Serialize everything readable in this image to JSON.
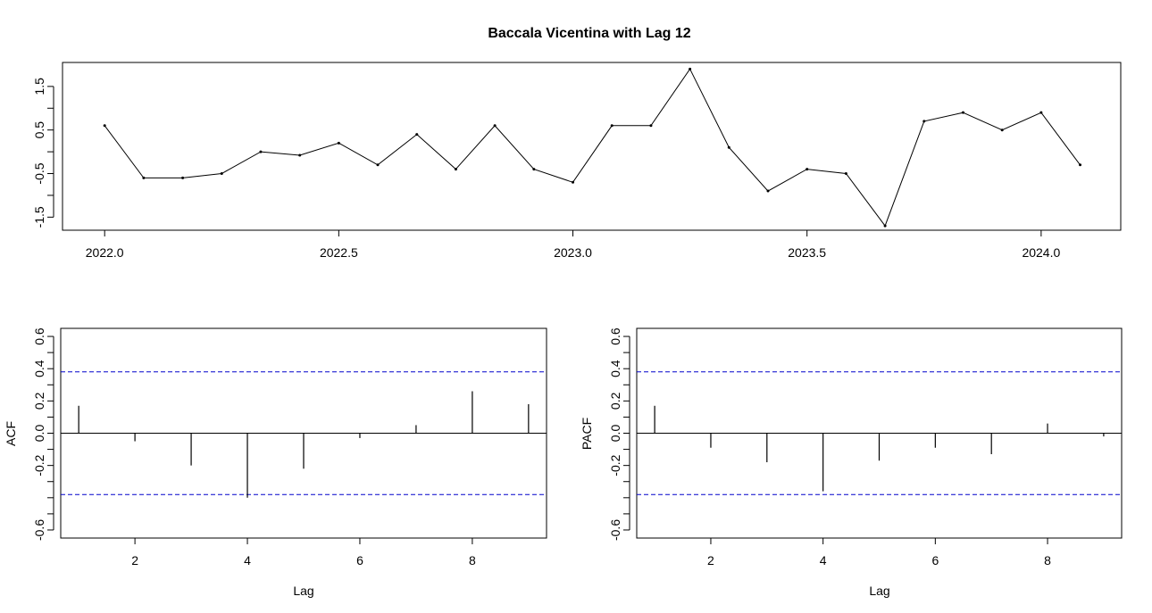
{
  "title": "Baccala Vicentina with Lag 12",
  "colors": {
    "line": "#000000",
    "bounds": "#0000cc",
    "background": "#ffffff"
  },
  "chart_data": [
    {
      "type": "line",
      "title": "Baccala Vicentina with Lag 12",
      "xlabel": "",
      "ylabel": "",
      "x": [
        2022.0,
        2022.0833,
        2022.1667,
        2022.25,
        2022.3333,
        2022.4167,
        2022.5,
        2022.5833,
        2022.6667,
        2022.75,
        2022.8333,
        2022.9167,
        2023.0,
        2023.0833,
        2023.1667,
        2023.25,
        2023.3333,
        2023.4167,
        2023.5,
        2023.5833,
        2023.6667,
        2023.75,
        2023.8333,
        2023.9167,
        2024.0,
        2024.0833
      ],
      "y": [
        0.6,
        -0.6,
        -0.6,
        -0.5,
        0.0,
        -0.08,
        0.2,
        -0.3,
        0.4,
        -0.4,
        0.6,
        -0.4,
        -0.7,
        0.6,
        0.6,
        1.9,
        0.1,
        -0.9,
        -0.4,
        -0.5,
        -1.7,
        0.7,
        0.9,
        0.5,
        0.9,
        -0.3
      ],
      "xlim": [
        2021.91,
        2024.17
      ],
      "ylim": [
        -1.8,
        2.05
      ],
      "xticks": [
        2022.0,
        2022.5,
        2023.0,
        2023.5,
        2024.0
      ],
      "xtick_labels": [
        "2022.0",
        "2022.5",
        "2023.0",
        "2023.5",
        "2024.0"
      ],
      "yticks": [
        -1.5,
        -0.5,
        0.5,
        1.5
      ],
      "ytick_labels": [
        "-1.5",
        "-0.5",
        "0.5",
        "1.5"
      ],
      "grid": false
    },
    {
      "type": "bar",
      "title": "",
      "xlabel": "Lag",
      "ylabel": "ACF",
      "lags": [
        1,
        2,
        3,
        4,
        5,
        6,
        7,
        8,
        9
      ],
      "values": [
        0.17,
        -0.05,
        -0.2,
        -0.4,
        -0.22,
        -0.03,
        0.05,
        0.26,
        0.18
      ],
      "confidence_bound": 0.38,
      "xlim": [
        0.68,
        9.32
      ],
      "ylim": [
        -0.65,
        0.65
      ],
      "xticks": [
        2,
        4,
        6,
        8
      ],
      "xtick_labels": [
        "2",
        "4",
        "6",
        "8"
      ],
      "yticks": [
        -0.6,
        -0.2,
        0.0,
        0.2,
        0.4,
        0.6
      ],
      "ytick_labels": [
        "-0.6",
        "-0.2",
        "0.0",
        "0.2",
        "0.4",
        "0.6"
      ],
      "grid": false
    },
    {
      "type": "bar",
      "title": "",
      "xlabel": "Lag",
      "ylabel": "PACF",
      "lags": [
        1,
        2,
        3,
        4,
        5,
        6,
        7,
        8,
        9
      ],
      "values": [
        0.17,
        -0.09,
        -0.18,
        -0.36,
        -0.17,
        -0.09,
        -0.13,
        0.06,
        -0.02
      ],
      "confidence_bound": 0.38,
      "xlim": [
        0.68,
        9.32
      ],
      "ylim": [
        -0.65,
        0.65
      ],
      "xticks": [
        2,
        4,
        6,
        8
      ],
      "xtick_labels": [
        "2",
        "4",
        "6",
        "8"
      ],
      "yticks": [
        -0.6,
        -0.2,
        0.0,
        0.2,
        0.4,
        0.6
      ],
      "ytick_labels": [
        "-0.6",
        "-0.2",
        "0.0",
        "0.2",
        "0.4",
        "0.6"
      ],
      "grid": false
    }
  ]
}
